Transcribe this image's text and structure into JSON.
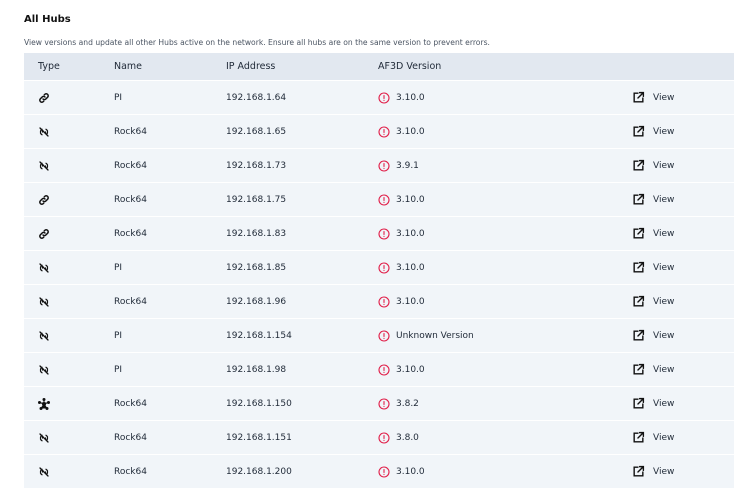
{
  "title": "All Hubs",
  "description": "View versions and update all other Hubs active on the network. Ensure all hubs are on the same version to prevent errors.",
  "columns": [
    "Type",
    "Name",
    "IP Address",
    "AF3D Version",
    ""
  ],
  "colors": {
    "warning": "#e11d48",
    "header_bg": "#e2e8f0",
    "row_bg": "#f1f5f9"
  },
  "rows": [
    {
      "type": "link-icon",
      "name": "PI",
      "ip": "192.168.1.64",
      "version": "3.10.0",
      "action": "View"
    },
    {
      "type": "signal-off-icon",
      "name": "Rock64",
      "ip": "192.168.1.65",
      "version": "3.10.0",
      "action": "View"
    },
    {
      "type": "signal-off-icon",
      "name": "Rock64",
      "ip": "192.168.1.73",
      "version": "3.9.1",
      "action": "View"
    },
    {
      "type": "link-icon",
      "name": "Rock64",
      "ip": "192.168.1.75",
      "version": "3.10.0",
      "action": "View"
    },
    {
      "type": "link-icon",
      "name": "Rock64",
      "ip": "192.168.1.83",
      "version": "3.10.0",
      "action": "View"
    },
    {
      "type": "signal-off-icon",
      "name": "PI",
      "ip": "192.168.1.85",
      "version": "3.10.0",
      "action": "View"
    },
    {
      "type": "signal-off-icon",
      "name": "Rock64",
      "ip": "192.168.1.96",
      "version": "3.10.0",
      "action": "View"
    },
    {
      "type": "signal-off-icon",
      "name": "PI",
      "ip": "192.168.1.154",
      "version": "Unknown Version",
      "action": "View"
    },
    {
      "type": "signal-off-icon",
      "name": "PI",
      "ip": "192.168.1.98",
      "version": "3.10.0",
      "action": "View"
    },
    {
      "type": "network-icon",
      "name": "Rock64",
      "ip": "192.168.1.150",
      "version": "3.8.2",
      "action": "View"
    },
    {
      "type": "signal-off-icon",
      "name": "Rock64",
      "ip": "192.168.1.151",
      "version": "3.8.0",
      "action": "View"
    },
    {
      "type": "signal-off-icon",
      "name": "Rock64",
      "ip": "192.168.1.200",
      "version": "3.10.0",
      "action": "View"
    }
  ]
}
